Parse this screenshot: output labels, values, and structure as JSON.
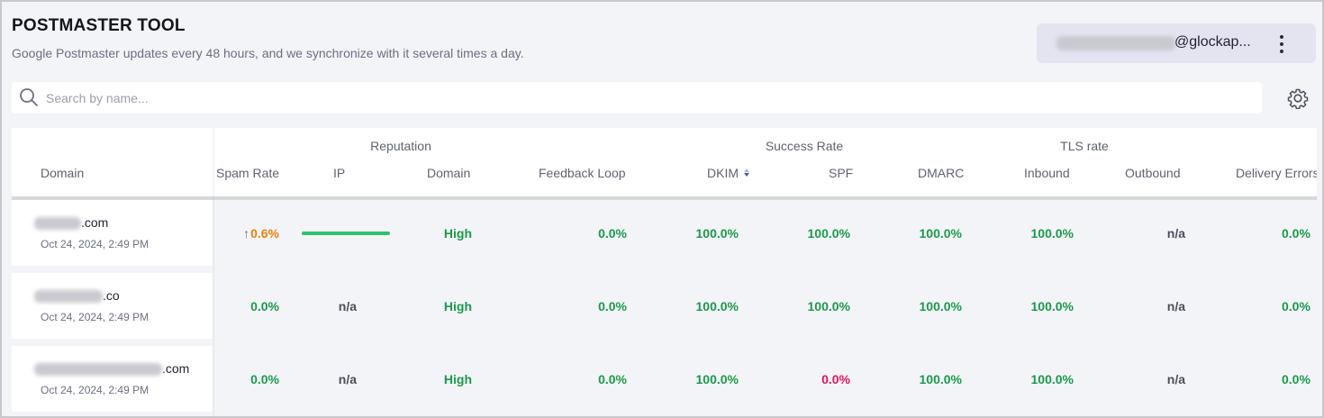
{
  "header": {
    "title": "POSTMASTER TOOL",
    "subtitle": "Google Postmaster updates every 48 hours, and we synchronize with it several times a day."
  },
  "account": {
    "email_suffix": "@glockap...",
    "menu_icon": "kebab-menu-icon"
  },
  "search": {
    "placeholder": "Search by name...",
    "value": "",
    "icon": "search-icon"
  },
  "settings": {
    "icon": "gear-icon"
  },
  "table": {
    "groups": {
      "reputation": "Reputation",
      "success_rate": "Success Rate",
      "tls_rate": "TLS rate"
    },
    "columns": {
      "domain": "Domain",
      "spam_rate": "Spam Rate",
      "ip": "IP",
      "domain_rep": "Domain",
      "feedback_loop": "Feedback Loop",
      "dkim": "DKIM",
      "spf": "SPF",
      "dmarc": "DMARC",
      "inbound": "Inbound",
      "outbound": "Outbound",
      "delivery_errors": "Delivery Errors"
    },
    "rows": [
      {
        "domain_suffix": ".com",
        "date": "Oct 24, 2024, 2:49 PM",
        "spam_rate": "0.6%",
        "spam_trend": "↑",
        "ip": "",
        "ip_level": 1.0,
        "domain_rep": "High",
        "feedback_loop": "0.0%",
        "dkim": "100.0%",
        "spf": "100.0%",
        "dmarc": "100.0%",
        "inbound": "100.0%",
        "outbound": "n/a",
        "delivery_errors": "0.0%"
      },
      {
        "domain_suffix": ".co",
        "date": "Oct 24, 2024, 2:49 PM",
        "spam_rate": "0.0%",
        "ip": "n/a",
        "domain_rep": "High",
        "feedback_loop": "0.0%",
        "dkim": "100.0%",
        "spf": "100.0%",
        "dmarc": "100.0%",
        "inbound": "100.0%",
        "outbound": "n/a",
        "delivery_errors": "0.0%"
      },
      {
        "domain_suffix": ".com",
        "date": "Oct 24, 2024, 2:49 PM",
        "spam_rate": "0.0%",
        "ip": "n/a",
        "domain_rep": "High",
        "feedback_loop": "0.0%",
        "dkim": "100.0%",
        "spf": "0.0%",
        "dmarc": "100.0%",
        "inbound": "100.0%",
        "outbound": "n/a",
        "delivery_errors": "0.0%"
      }
    ]
  },
  "colors": {
    "good": "#1a9a4a",
    "warning": "#e8800c",
    "bad": "#e2145a",
    "neutral": "#4a4e5c",
    "reputation_bar": "#2ec36a"
  }
}
